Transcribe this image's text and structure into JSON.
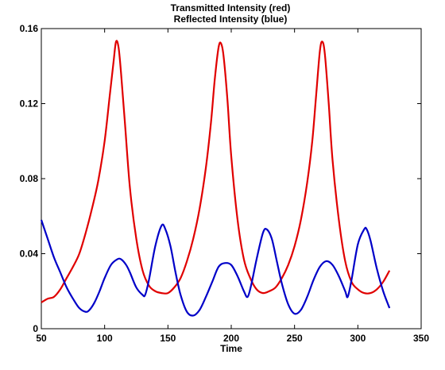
{
  "chart_data": {
    "type": "line",
    "title": "Transmitted Intensity (red)",
    "subtitle": "Reflected Intensity (blue)",
    "xlabel": "Time",
    "ylabel": "",
    "xlim": [
      50,
      350
    ],
    "ylim": [
      0,
      0.16
    ],
    "xticks": [
      50,
      100,
      150,
      200,
      250,
      300,
      350
    ],
    "yticks": [
      0,
      0.04,
      0.08,
      0.12,
      0.16
    ],
    "xtick_labels": [
      "50",
      "100",
      "150",
      "200",
      "250",
      "300",
      "350"
    ],
    "ytick_labels": [
      "0",
      "0.04",
      "0.08",
      "0.12",
      "0.16"
    ],
    "grid": false,
    "series": [
      {
        "color": "#e00000",
        "x": [
          50,
          55,
          60,
          65,
          70,
          75,
          80,
          85,
          90,
          95,
          100,
          104,
          107,
          109,
          111,
          113,
          116,
          120,
          125,
          130,
          135,
          140,
          145,
          150,
          155,
          160,
          165,
          170,
          175,
          180,
          184,
          187,
          190,
          192,
          194,
          197,
          200,
          205,
          210,
          215,
          220,
          225,
          230,
          235,
          240,
          245,
          250,
          255,
          260,
          264,
          267,
          270,
          272,
          274,
          277,
          280,
          285,
          290,
          295,
          300,
          305,
          310,
          315,
          320,
          325
        ],
        "y": [
          0.014,
          0.016,
          0.017,
          0.021,
          0.027,
          0.033,
          0.04,
          0.051,
          0.064,
          0.079,
          0.1,
          0.124,
          0.142,
          0.153,
          0.15,
          0.136,
          0.11,
          0.075,
          0.048,
          0.031,
          0.023,
          0.02,
          0.019,
          0.019,
          0.022,
          0.027,
          0.036,
          0.048,
          0.064,
          0.086,
          0.11,
          0.133,
          0.15,
          0.152,
          0.145,
          0.122,
          0.092,
          0.058,
          0.037,
          0.027,
          0.021,
          0.019,
          0.02,
          0.022,
          0.027,
          0.034,
          0.044,
          0.058,
          0.078,
          0.1,
          0.124,
          0.148,
          0.153,
          0.146,
          0.12,
          0.09,
          0.058,
          0.036,
          0.025,
          0.021,
          0.019,
          0.019,
          0.021,
          0.025,
          0.031
        ]
      },
      {
        "color": "#0000c8",
        "x": [
          50,
          55,
          60,
          65,
          70,
          75,
          80,
          85,
          88,
          92,
          96,
          100,
          105,
          110,
          113,
          117,
          120,
          125,
          130,
          132,
          135,
          140,
          145,
          148,
          152,
          156,
          160,
          165,
          170,
          175,
          180,
          185,
          190,
          195,
          200,
          205,
          210,
          213,
          216,
          220,
          225,
          228,
          232,
          236,
          240,
          245,
          250,
          255,
          260,
          265,
          270,
          275,
          280,
          285,
          290,
          292,
          295,
          300,
          305,
          307,
          310,
          315,
          320,
          325
        ],
        "y": [
          0.058,
          0.048,
          0.038,
          0.03,
          0.022,
          0.016,
          0.011,
          0.009,
          0.01,
          0.014,
          0.02,
          0.027,
          0.034,
          0.037,
          0.037,
          0.034,
          0.03,
          0.022,
          0.018,
          0.018,
          0.026,
          0.044,
          0.055,
          0.053,
          0.044,
          0.03,
          0.018,
          0.009,
          0.007,
          0.01,
          0.017,
          0.025,
          0.033,
          0.035,
          0.034,
          0.028,
          0.02,
          0.017,
          0.024,
          0.037,
          0.051,
          0.053,
          0.048,
          0.036,
          0.024,
          0.013,
          0.008,
          0.01,
          0.017,
          0.026,
          0.033,
          0.036,
          0.034,
          0.028,
          0.02,
          0.017,
          0.026,
          0.045,
          0.053,
          0.053,
          0.047,
          0.032,
          0.02,
          0.011
        ]
      }
    ]
  }
}
